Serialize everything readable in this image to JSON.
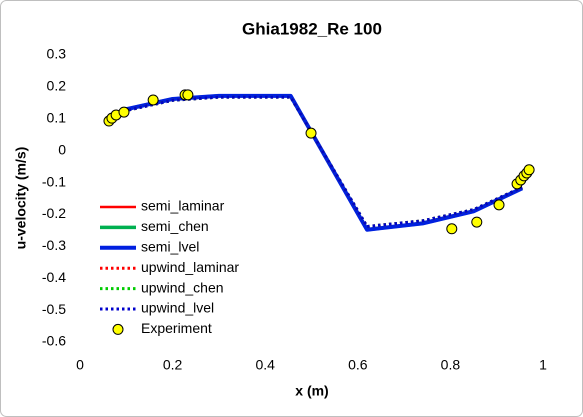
{
  "chart_data": {
    "type": "line",
    "title": "Ghia1982_Re 100",
    "xlabel": "x (m)",
    "ylabel": "u-velocity (m/s)",
    "x": [
      0.0625,
      0.08,
      0.1,
      0.2,
      0.3,
      0.455,
      0.62,
      0.74,
      0.85,
      0.955
    ],
    "series": [
      {
        "name": "semi_laminar",
        "color": "#ff0000",
        "line_style": "solid",
        "width": 2.5,
        "values": [
          0.103,
          0.115,
          0.13,
          0.162,
          0.172,
          0.172,
          -0.248,
          -0.228,
          -0.19,
          -0.118
        ]
      },
      {
        "name": "semi_chen",
        "color": "#00b050",
        "line_style": "solid",
        "width": 3.5,
        "values": [
          0.103,
          0.115,
          0.13,
          0.162,
          0.172,
          0.172,
          -0.248,
          -0.228,
          -0.19,
          -0.118
        ]
      },
      {
        "name": "semi_lvel",
        "color": "#0020e0",
        "line_style": "solid",
        "width": 4,
        "values": [
          0.103,
          0.115,
          0.13,
          0.162,
          0.172,
          0.172,
          -0.248,
          -0.228,
          -0.19,
          -0.118
        ]
      },
      {
        "name": "upwind_laminar",
        "color": "#ff0000",
        "line_style": "dotted",
        "width": 3,
        "values": [
          0.098,
          0.11,
          0.126,
          0.158,
          0.168,
          0.168,
          -0.238,
          -0.22,
          -0.185,
          -0.115
        ]
      },
      {
        "name": "upwind_chen",
        "color": "#00cc00",
        "line_style": "dotted",
        "width": 3,
        "values": [
          0.098,
          0.11,
          0.126,
          0.158,
          0.168,
          0.168,
          -0.238,
          -0.22,
          -0.185,
          -0.115
        ]
      },
      {
        "name": "upwind_lvel",
        "color": "#0000cc",
        "line_style": "dotted",
        "width": 3,
        "values": [
          0.098,
          0.11,
          0.126,
          0.158,
          0.168,
          0.168,
          -0.238,
          -0.22,
          -0.185,
          -0.115
        ]
      },
      {
        "name": "Experiment",
        "color": "#ffff00",
        "marker": "circle",
        "x": [
          0.0626,
          0.069,
          0.078,
          0.095,
          0.158,
          0.227,
          0.233,
          0.499,
          0.803,
          0.857,
          0.905,
          0.944,
          0.952,
          0.959,
          0.965,
          0.97
        ],
        "values": [
          0.093,
          0.102,
          0.112,
          0.121,
          0.159,
          0.175,
          0.175,
          0.055,
          -0.245,
          -0.224,
          -0.17,
          -0.104,
          -0.092,
          -0.079,
          -0.07,
          -0.06
        ]
      }
    ],
    "xlim": [
      0,
      1
    ],
    "xticks": [
      0,
      0.2,
      0.4,
      0.6,
      0.8,
      1
    ],
    "ylim": [
      -0.6,
      0.3
    ],
    "yticks": [
      0.3,
      0.2,
      0.1,
      0,
      -0.1,
      -0.2,
      -0.3,
      -0.4,
      -0.5,
      -0.6
    ],
    "grid": false,
    "legend": "lower-left"
  }
}
